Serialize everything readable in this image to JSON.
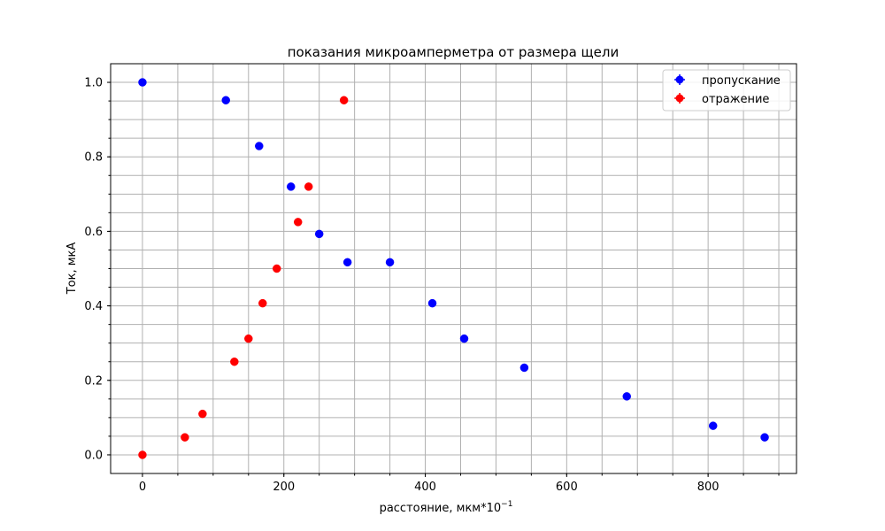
{
  "chart_data": {
    "type": "scatter",
    "title": "показания микроамперметра от размера щели",
    "xlabel": "расстояние, мкм*10",
    "xlabel_sup": "−1",
    "ylabel": "Ток, мкА",
    "xlim": [
      -45,
      925
    ],
    "ylim": [
      -0.05,
      1.05
    ],
    "x_major_ticks": [
      0,
      200,
      400,
      600,
      800
    ],
    "x_tick_labels": [
      "0",
      "200",
      "400",
      "600",
      "800"
    ],
    "x_minor_ticks": [
      -50,
      0,
      50,
      100,
      150,
      200,
      250,
      300,
      350,
      400,
      450,
      500,
      550,
      600,
      650,
      700,
      750,
      800,
      850,
      900
    ],
    "y_major_ticks": [
      0.0,
      0.2,
      0.4,
      0.6,
      0.8,
      1.0
    ],
    "y_tick_labels": [
      "0.0",
      "0.2",
      "0.4",
      "0.6",
      "0.8",
      "1.0"
    ],
    "y_minor_ticks": [
      0.0,
      0.05,
      0.1,
      0.15,
      0.2,
      0.25,
      0.3,
      0.35,
      0.4,
      0.45,
      0.5,
      0.55,
      0.6,
      0.65,
      0.7,
      0.75,
      0.8,
      0.85,
      0.9,
      0.95,
      1.0
    ],
    "grid": true,
    "legend_position": "top-right",
    "series": [
      {
        "name": "пропускание",
        "color": "#0000ff",
        "points": [
          {
            "x": 0,
            "y": 1.0
          },
          {
            "x": 118,
            "y": 0.952
          },
          {
            "x": 165,
            "y": 0.829
          },
          {
            "x": 210,
            "y": 0.72
          },
          {
            "x": 250,
            "y": 0.593
          },
          {
            "x": 290,
            "y": 0.517
          },
          {
            "x": 350,
            "y": 0.517
          },
          {
            "x": 410,
            "y": 0.407
          },
          {
            "x": 455,
            "y": 0.312
          },
          {
            "x": 540,
            "y": 0.234
          },
          {
            "x": 685,
            "y": 0.157
          },
          {
            "x": 807,
            "y": 0.078
          },
          {
            "x": 880,
            "y": 0.047
          }
        ]
      },
      {
        "name": "отражение",
        "color": "#ff0000",
        "points": [
          {
            "x": 0,
            "y": 0.0
          },
          {
            "x": 60,
            "y": 0.047
          },
          {
            "x": 85,
            "y": 0.11
          },
          {
            "x": 130,
            "y": 0.25
          },
          {
            "x": 150,
            "y": 0.312
          },
          {
            "x": 170,
            "y": 0.407
          },
          {
            "x": 190,
            "y": 0.5
          },
          {
            "x": 220,
            "y": 0.625
          },
          {
            "x": 235,
            "y": 0.72
          },
          {
            "x": 285,
            "y": 0.952
          }
        ]
      }
    ]
  }
}
